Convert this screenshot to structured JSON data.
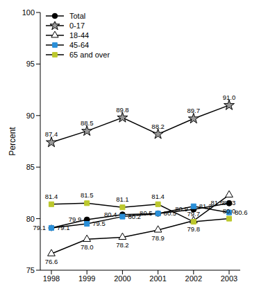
{
  "chart_data": {
    "type": "line",
    "y_label": "Percent",
    "categories": [
      "1998",
      "1999",
      "2000",
      "2001",
      "2002",
      "2003"
    ],
    "series": [
      {
        "name": "Total",
        "color": "#000000",
        "marker": "circle",
        "values": [
          79.1,
          79.9,
          80.4,
          80.5,
          80.9,
          81.5
        ]
      },
      {
        "name": "0-17",
        "color": "#999999",
        "marker": "star",
        "values": [
          87.4,
          88.5,
          89.8,
          88.2,
          89.7,
          91.0
        ]
      },
      {
        "name": "18-44",
        "color": "#000000",
        "marker": "triangle_open",
        "values": [
          76.6,
          78.0,
          78.2,
          78.9,
          79.8,
          82.3
        ]
      },
      {
        "name": "45-64",
        "color": "#2a8fd8",
        "marker": "square",
        "values": [
          79.1,
          79.5,
          80.2,
          80.5,
          81.2,
          80.6
        ]
      },
      {
        "name": "65 and over",
        "color": "#bcc82d",
        "marker": "square",
        "values": [
          81.4,
          81.5,
          81.1,
          81.4,
          79.7,
          80.0
        ]
      }
    ],
    "ylim": [
      75,
      100
    ],
    "yticks": [
      75,
      80,
      85,
      90,
      95,
      100
    ],
    "data_labels": true,
    "legend": "upper left"
  }
}
